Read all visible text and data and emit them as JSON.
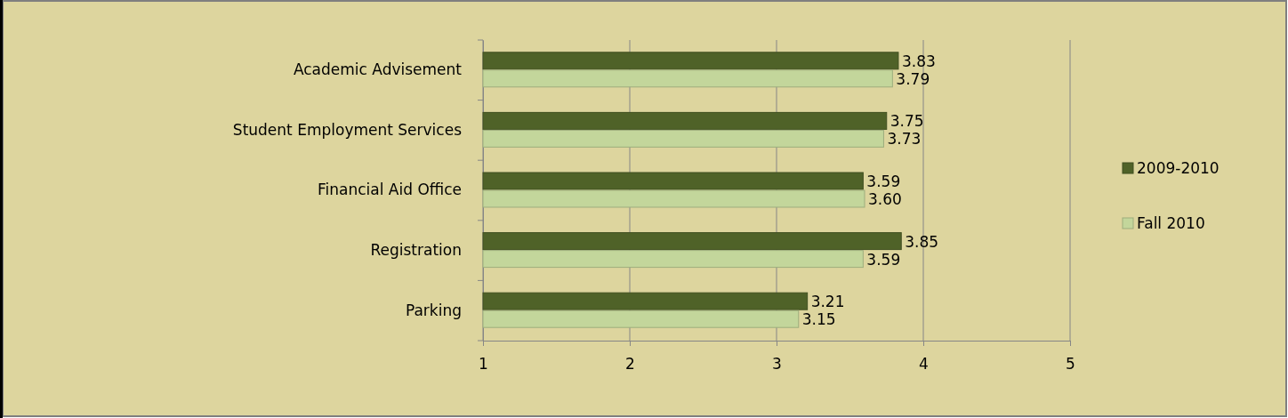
{
  "chart_data": {
    "type": "bar",
    "orientation": "horizontal",
    "categories": [
      "Academic Advisement",
      "Student Employment Services",
      "Financial Aid Office",
      "Registration",
      "Parking"
    ],
    "series": [
      {
        "name": "2009-2010",
        "color": "#4f6228",
        "values": [
          3.83,
          3.75,
          3.59,
          3.85,
          3.21
        ],
        "value_labels": [
          "3.83",
          "3.75",
          "3.59",
          "3.85",
          "3.21"
        ]
      },
      {
        "name": "Fall 2010",
        "color": "#c3d69b",
        "values": [
          3.79,
          3.73,
          3.6,
          3.59,
          3.15
        ],
        "value_labels": [
          "3.79",
          "3.73",
          "3.60",
          "3.59",
          "3.15"
        ]
      }
    ],
    "xlim": [
      1,
      5
    ],
    "xticks": [
      1,
      2,
      3,
      4,
      5
    ],
    "grid": "x",
    "legend": "right"
  }
}
